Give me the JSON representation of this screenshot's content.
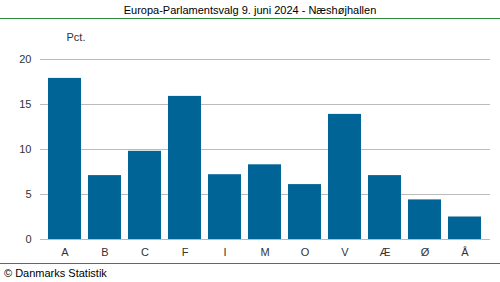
{
  "chart_data": {
    "type": "bar",
    "title": "Europa-Parlamentsvalg 9. juni 2024 - Næshøjhallen",
    "y_label": "Pct.",
    "caption": "© Danmarks Statistik",
    "categories": [
      "A",
      "B",
      "C",
      "F",
      "I",
      "M",
      "O",
      "V",
      "Æ",
      "Ø",
      "Å"
    ],
    "values": [
      17.9,
      7.1,
      9.8,
      15.9,
      7.2,
      8.3,
      6.1,
      13.9,
      7.1,
      4.4,
      2.5
    ],
    "color": "#006497",
    "ylim": [
      0,
      20
    ],
    "yticks": [
      0,
      5,
      10,
      15,
      20
    ],
    "grid": true
  }
}
